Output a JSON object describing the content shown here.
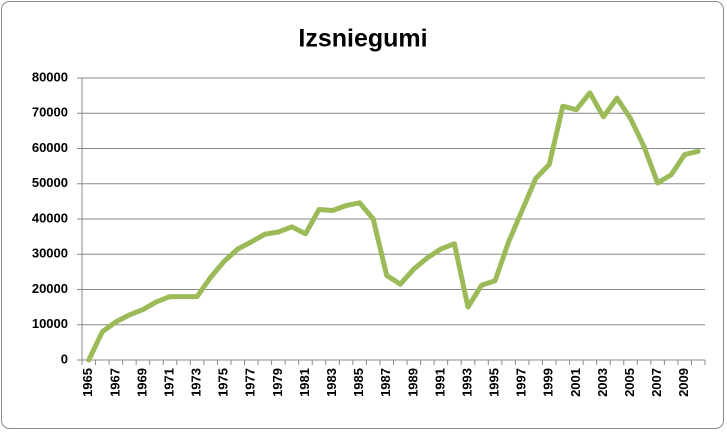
{
  "chart_data": {
    "type": "line",
    "title": "Izsniegumi",
    "categories": [
      "1965",
      null,
      "1967",
      null,
      "1969",
      null,
      "1971",
      null,
      "1973",
      null,
      "1975",
      null,
      "1977",
      null,
      "1979",
      null,
      "1981",
      null,
      "1983",
      null,
      "1985",
      null,
      "1987",
      null,
      "1989",
      null,
      "1991",
      null,
      "1993",
      null,
      "1995",
      null,
      "1997",
      null,
      "1999",
      null,
      "2001",
      null,
      "2003",
      null,
      "2005",
      null,
      "2007",
      null,
      "2009",
      null
    ],
    "values": [
      0,
      8000,
      10800,
      12800,
      14300,
      16500,
      18000,
      18000,
      18000,
      23500,
      28000,
      31500,
      33500,
      35700,
      36300,
      37800,
      35800,
      42700,
      42400,
      43800,
      44600,
      40000,
      24000,
      21500,
      25800,
      29000,
      31500,
      33000,
      15000,
      21200,
      22500,
      33500,
      42500,
      51500,
      55500,
      72000,
      71000,
      75800,
      69000,
      74300,
      68500,
      60500,
      50200,
      52500,
      58300,
      59200
    ],
    "color": "#9bbb59",
    "ylim": [
      0,
      80000
    ],
    "yticks": [
      0,
      10000,
      20000,
      30000,
      40000,
      50000,
      60000,
      70000,
      80000
    ],
    "grid": true
  }
}
